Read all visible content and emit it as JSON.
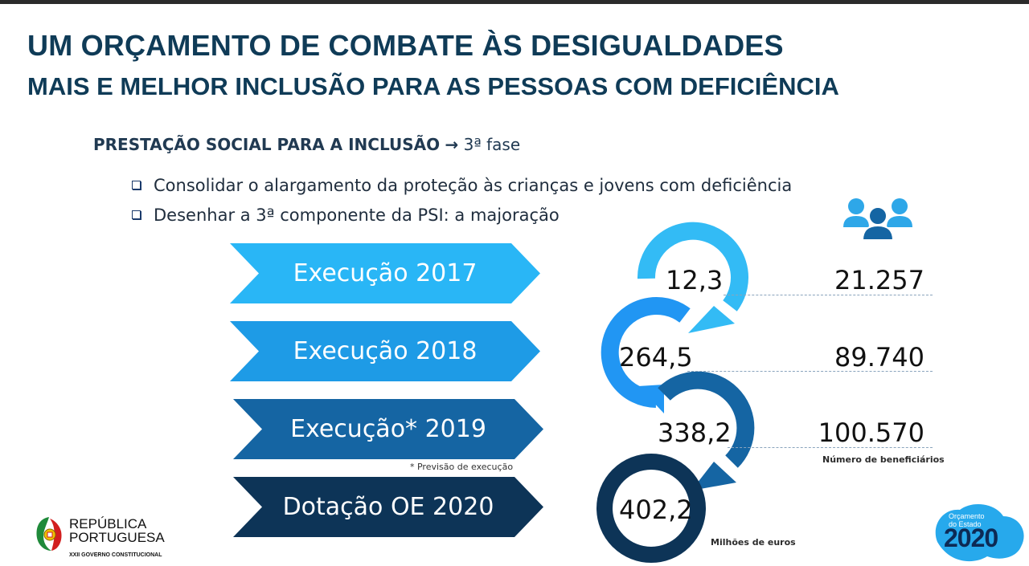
{
  "header": {
    "title": "UM ORÇAMENTO DE COMBATE ÀS DESIGUALDADES",
    "subtitle": "MAIS E MELHOR INCLUSÃO PARA AS PESSOAS COM DEFICIÊNCIA"
  },
  "section": {
    "heading_bold": "PRESTAÇÃO SOCIAL PARA A INCLUSÃO",
    "heading_arrow": "→",
    "heading_rest": "3ª fase"
  },
  "bullets": [
    "Consolidar o alargamento da proteção às crianças e jovens com deficiência",
    "Desenhar a 3ª componente da PSI: a majoração"
  ],
  "rows": [
    {
      "label": "Execução 2017",
      "amount": "12,3",
      "beneficiaries": "21.257",
      "color": "#29b6f6"
    },
    {
      "label": "Execução 2018",
      "amount": "264,5",
      "beneficiaries": "89.740",
      "color": "#2196f3"
    },
    {
      "label": "Execução* 2019",
      "amount": "338,2",
      "beneficiaries": "100.570",
      "color": "#1769aa"
    },
    {
      "label": "Dotação OE 2020",
      "amount": "402,2",
      "beneficiaries": "",
      "color": "#0d3457"
    }
  ],
  "footnote": "* Previsão de execução",
  "captions": {
    "beneficiaries": "Número de beneficiários",
    "amounts": "Milhões de euros"
  },
  "icons": {
    "people": "people-group-icon"
  },
  "logo_left": {
    "line1": "REPÚBLICA",
    "line2": "PORTUGUESA",
    "line3": "XXII GOVERNO CONSTITUCIONAL"
  },
  "logo_right": {
    "line1": "Orçamento",
    "line2": "do Estado",
    "year": "2020"
  }
}
